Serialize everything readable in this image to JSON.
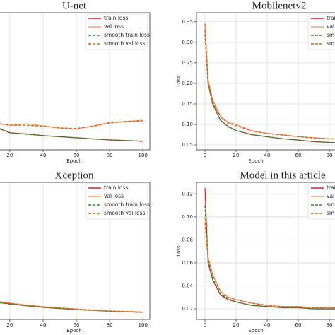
{
  "chart_data": [
    {
      "type": "line",
      "title": "U-net",
      "x_label": "Epoch",
      "x": [
        0,
        2,
        5,
        10,
        15,
        20,
        30,
        40,
        50,
        60,
        70,
        80,
        90,
        100
      ],
      "xlim": [
        -5,
        105
      ],
      "xticks": [
        20,
        40,
        60,
        80,
        100
      ],
      "ylim": [
        0,
        0.5
      ],
      "grid": true,
      "legend": "upper right",
      "series": [
        {
          "name": "train loss",
          "color": "#e41a1c",
          "linestyle": "solid",
          "values": [
            0.14,
            0.12,
            0.105,
            0.09,
            0.075,
            0.062,
            0.058,
            0.052,
            0.048,
            0.044,
            0.04,
            0.036,
            0.034,
            0.031
          ]
        },
        {
          "name": "val loss",
          "color": "#f5a070",
          "linestyle": "solid",
          "values": [
            0.15,
            0.13,
            0.12,
            0.1,
            0.095,
            0.09,
            0.095,
            0.088,
            0.08,
            0.075,
            0.088,
            0.1,
            0.104,
            0.108
          ]
        },
        {
          "name": "smooth train loss",
          "color": "#2e8b2e",
          "linestyle": "dashed",
          "values": [
            0.138,
            0.12,
            0.104,
            0.088,
            0.074,
            0.063,
            0.057,
            0.052,
            0.048,
            0.044,
            0.04,
            0.037,
            0.034,
            0.032
          ]
        },
        {
          "name": "smooth val loss",
          "color": "#d2691e",
          "linestyle": "dashed",
          "values": [
            0.145,
            0.128,
            0.115,
            0.1,
            0.094,
            0.09,
            0.09,
            0.086,
            0.08,
            0.078,
            0.086,
            0.098,
            0.103,
            0.106
          ]
        }
      ]
    },
    {
      "type": "line",
      "title": "Mobilenetv2",
      "x_label": "Epoch",
      "y_label": "Loss",
      "x": [
        0,
        2,
        5,
        10,
        15,
        20,
        30,
        40,
        50,
        60,
        70,
        80,
        90,
        100
      ],
      "xlim": [
        -5,
        105
      ],
      "xticks": [
        0,
        20,
        40,
        60,
        80
      ],
      "ylim": [
        0.038,
        0.372
      ],
      "yticks": [
        0.05,
        {
          "value": 0.1,
          "label": "0.10"
        },
        0.15,
        {
          "value": 0.2,
          "label": "0.20"
        },
        0.25,
        {
          "value": 0.3,
          "label": "0.30"
        },
        0.35
      ],
      "grid": true,
      "legend": "upper right",
      "series": [
        {
          "name": "train loss",
          "color": "#e41a1c",
          "linestyle": "solid",
          "values": [
            0.345,
            0.2,
            0.15,
            0.11,
            0.095,
            0.085,
            0.075,
            0.07,
            0.065,
            0.062,
            0.058,
            0.056,
            0.055,
            0.054
          ]
        },
        {
          "name": "val loss",
          "color": "#f5a070",
          "linestyle": "solid",
          "values": [
            0.34,
            0.21,
            0.16,
            0.12,
            0.105,
            0.1,
            0.085,
            0.078,
            0.075,
            0.07,
            0.068,
            0.065,
            0.064,
            0.063
          ]
        },
        {
          "name": "smooth train loss",
          "color": "#2e8b2e",
          "linestyle": "dashed",
          "values": [
            0.32,
            0.2,
            0.148,
            0.11,
            0.094,
            0.085,
            0.075,
            0.07,
            0.065,
            0.062,
            0.058,
            0.056,
            0.055,
            0.054
          ]
        },
        {
          "name": "smooth val loss",
          "color": "#d2691e",
          "linestyle": "dashed",
          "values": [
            0.33,
            0.205,
            0.155,
            0.118,
            0.103,
            0.097,
            0.084,
            0.078,
            0.074,
            0.07,
            0.067,
            0.065,
            0.064,
            0.063
          ]
        }
      ]
    },
    {
      "type": "line",
      "title": "Xception",
      "x_label": "Epoch",
      "x": [
        0,
        2,
        5,
        10,
        15,
        20,
        30,
        40,
        50,
        60,
        70,
        80,
        90,
        100
      ],
      "xlim": [
        -5,
        105
      ],
      "xticks": [
        20,
        40,
        60,
        80,
        100
      ],
      "ylim": [
        0,
        0.5
      ],
      "grid": true,
      "legend": "upper right",
      "series": [
        {
          "name": "train loss",
          "color": "#e41a1c",
          "linestyle": "solid",
          "values": [
            0.1,
            0.09,
            0.078,
            0.065,
            0.06,
            0.057,
            0.05,
            0.044,
            0.04,
            0.036,
            0.033,
            0.03,
            0.028,
            0.026
          ]
        },
        {
          "name": "val loss",
          "color": "#f5a070",
          "linestyle": "solid",
          "values": [
            0.11,
            0.095,
            0.085,
            0.07,
            0.064,
            0.06,
            0.052,
            0.047,
            0.042,
            0.038,
            0.034,
            0.031,
            0.029,
            0.027
          ]
        },
        {
          "name": "smooth train loss",
          "color": "#2e8b2e",
          "linestyle": "dashed",
          "values": [
            0.098,
            0.089,
            0.077,
            0.065,
            0.06,
            0.056,
            0.05,
            0.044,
            0.04,
            0.036,
            0.033,
            0.03,
            0.028,
            0.026
          ]
        },
        {
          "name": "smooth val loss",
          "color": "#d2691e",
          "linestyle": "dashed",
          "values": [
            0.105,
            0.094,
            0.083,
            0.069,
            0.063,
            0.059,
            0.052,
            0.046,
            0.042,
            0.038,
            0.034,
            0.031,
            0.029,
            0.027
          ]
        }
      ]
    },
    {
      "type": "line",
      "title": "Model in this article",
      "x_label": "Epoch",
      "y_label": "Loss",
      "x": [
        0,
        2,
        5,
        10,
        15,
        20,
        30,
        40,
        50,
        60,
        70,
        80,
        90,
        100
      ],
      "xlim": [
        -5,
        105
      ],
      "xticks": [
        0,
        20,
        40,
        60,
        80
      ],
      "ylim": [
        0.0108,
        0.13
      ],
      "yticks": [
        0.02,
        0.04,
        0.06,
        0.08,
        {
          "value": 0.1,
          "label": "0.10"
        },
        0.12
      ],
      "grid": true,
      "legend": "upper right",
      "series": [
        {
          "name": "train loss",
          "color": "#e41a1c",
          "linestyle": "solid",
          "values": [
            0.125,
            0.06,
            0.045,
            0.032,
            0.028,
            0.026,
            0.023,
            0.022,
            0.021,
            0.021,
            0.02,
            0.02,
            0.02,
            0.02
          ]
        },
        {
          "name": "val loss",
          "color": "#f5a070",
          "linestyle": "solid",
          "values": [
            0.1,
            0.065,
            0.05,
            0.035,
            0.03,
            0.028,
            0.025,
            0.023,
            0.022,
            0.022,
            0.021,
            0.021,
            0.021,
            0.021
          ]
        },
        {
          "name": "smooth train loss",
          "color": "#2e8b2e",
          "linestyle": "dashed",
          "values": [
            0.11,
            0.062,
            0.046,
            0.033,
            0.029,
            0.026,
            0.023,
            0.022,
            0.021,
            0.021,
            0.02,
            0.02,
            0.02,
            0.02
          ]
        },
        {
          "name": "smooth val loss",
          "color": "#d2691e",
          "linestyle": "dashed",
          "values": [
            0.095,
            0.064,
            0.049,
            0.035,
            0.03,
            0.028,
            0.025,
            0.023,
            0.022,
            0.022,
            0.021,
            0.021,
            0.021,
            0.021
          ]
        }
      ]
    }
  ]
}
